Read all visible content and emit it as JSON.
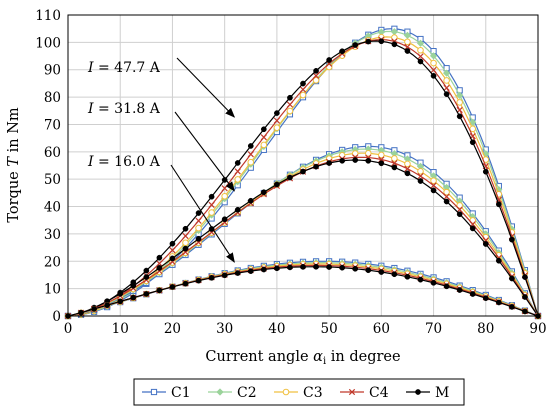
{
  "chart_data": {
    "type": "line",
    "xlabel_main": "Current angle ",
    "xlabel_symbol": "α",
    "xlabel_sub": "i",
    "xlabel_rest": " in degree",
    "ylabel_main": "Torque ",
    "ylabel_symbol": "T",
    "ylabel_rest": " in Nm",
    "xlim": [
      0,
      90
    ],
    "ylim": [
      0,
      110
    ],
    "xticks": [
      "0",
      "10",
      "20",
      "30",
      "40",
      "50",
      "60",
      "70",
      "80",
      "90"
    ],
    "yticks": [
      "0",
      "10",
      "20",
      "30",
      "40",
      "50",
      "60",
      "70",
      "80",
      "90",
      "100",
      "110"
    ],
    "grid": true,
    "legend_position": "bottom",
    "legend": [
      "C1",
      "C2",
      "C3",
      "C4",
      "M"
    ],
    "annotations": [
      {
        "symbol": "I",
        "text": " = 47.7 A",
        "arrow_to": [
          33,
          72
        ]
      },
      {
        "symbol": "I",
        "text": " = 31.8 A",
        "arrow_to": [
          33,
          45
        ]
      },
      {
        "symbol": "I",
        "text": " = 16.0 A",
        "arrow_to": [
          33,
          19
        ]
      }
    ],
    "series": [
      {
        "group": "47.7 A",
        "legend": "C1",
        "color": "#4472c4",
        "marker": "square",
        "peak": 105.0,
        "peak_angle": 62.0
      },
      {
        "group": "47.7 A",
        "legend": "C2",
        "color": "#9bd39b",
        "marker": "diamond",
        "peak": 104.0,
        "peak_angle": 61.5
      },
      {
        "group": "47.7 A",
        "legend": "C3",
        "color": "#f0c040",
        "marker": "circle-open",
        "peak": 102.0,
        "peak_angle": 61.0
      },
      {
        "group": "47.7 A",
        "legend": "C4",
        "color": "#c0392b",
        "marker": "cross",
        "peak": 101.0,
        "peak_angle": 60.0
      },
      {
        "group": "47.7 A",
        "legend": "M",
        "color": "#000000",
        "marker": "circle",
        "peak": 100.5,
        "peak_angle": 59.0
      },
      {
        "group": "31.8 A",
        "legend": "C1",
        "color": "#4472c4",
        "marker": "square",
        "peak": 62.0,
        "peak_angle": 57.5
      },
      {
        "group": "31.8 A",
        "legend": "C2",
        "color": "#9bd39b",
        "marker": "diamond",
        "peak": 61.0,
        "peak_angle": 57.0
      },
      {
        "group": "31.8 A",
        "legend": "C3",
        "color": "#f0c040",
        "marker": "circle-open",
        "peak": 59.5,
        "peak_angle": 56.5
      },
      {
        "group": "31.8 A",
        "legend": "C4",
        "color": "#c0392b",
        "marker": "cross",
        "peak": 58.0,
        "peak_angle": 56.0
      },
      {
        "group": "31.8 A",
        "legend": "M",
        "color": "#000000",
        "marker": "circle",
        "peak": 57.0,
        "peak_angle": 55.0
      },
      {
        "group": "16.0 A",
        "legend": "C1",
        "color": "#4472c4",
        "marker": "square",
        "peak": 20.0,
        "peak_angle": 49.0
      },
      {
        "group": "16.0 A",
        "legend": "C2",
        "color": "#9bd39b",
        "marker": "diamond",
        "peak": 19.5,
        "peak_angle": 48.5
      },
      {
        "group": "16.0 A",
        "legend": "C3",
        "color": "#f0c040",
        "marker": "circle-open",
        "peak": 19.0,
        "peak_angle": 48.0
      },
      {
        "group": "16.0 A",
        "legend": "C4",
        "color": "#c0392b",
        "marker": "cross",
        "peak": 18.5,
        "peak_angle": 47.5
      },
      {
        "group": "16.0 A",
        "legend": "M",
        "color": "#000000",
        "marker": "circle",
        "peak": 18.0,
        "peak_angle": 47.0
      }
    ]
  }
}
